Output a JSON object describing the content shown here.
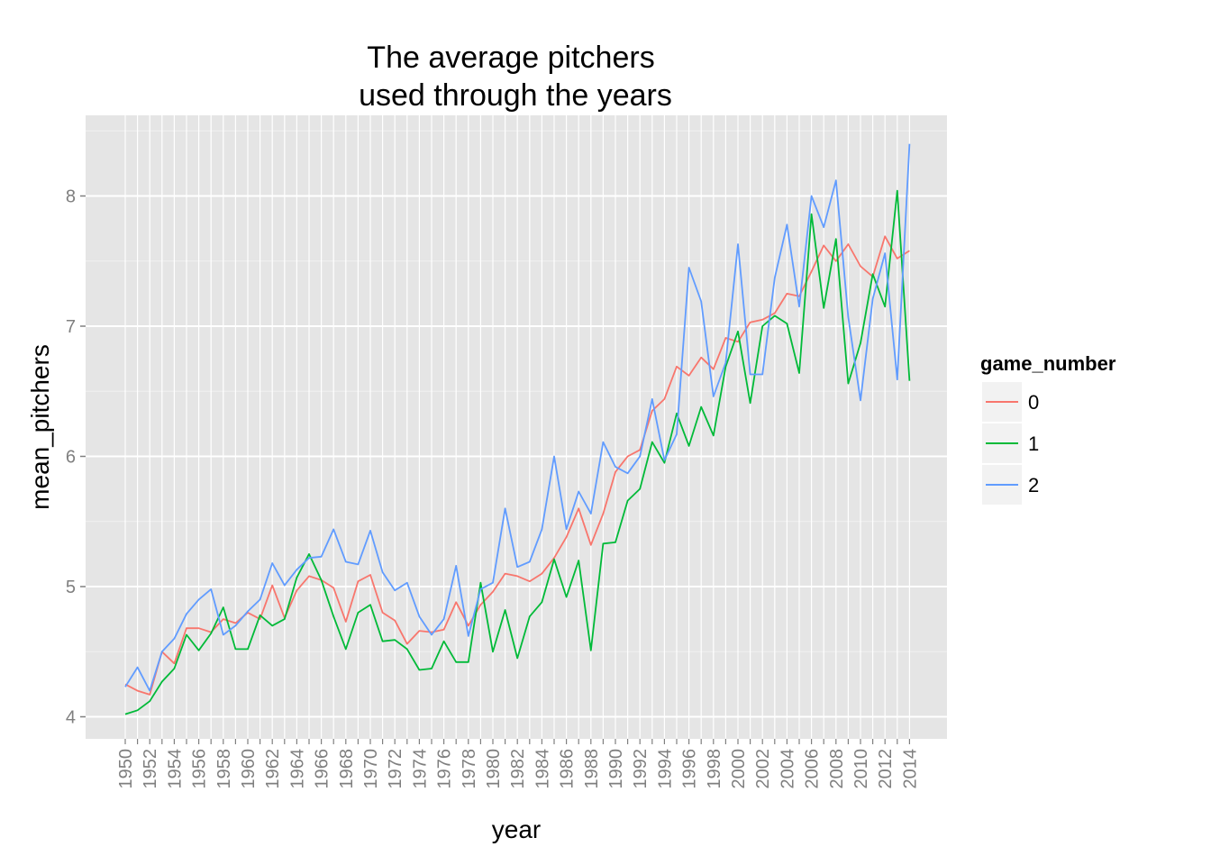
{
  "chart_data": {
    "type": "line",
    "title_lines": [
      "The average pitchers",
      "used through the years"
    ],
    "xlabel": "year",
    "ylabel": "mean_pitchers",
    "x": [
      1950,
      1951,
      1952,
      1953,
      1954,
      1955,
      1956,
      1957,
      1958,
      1959,
      1960,
      1961,
      1962,
      1963,
      1964,
      1965,
      1966,
      1967,
      1968,
      1969,
      1970,
      1971,
      1972,
      1973,
      1974,
      1975,
      1976,
      1977,
      1978,
      1979,
      1980,
      1981,
      1982,
      1983,
      1984,
      1985,
      1986,
      1987,
      1988,
      1989,
      1990,
      1991,
      1992,
      1993,
      1994,
      1995,
      1996,
      1997,
      1998,
      1999,
      2000,
      2001,
      2002,
      2003,
      2004,
      2005,
      2006,
      2007,
      2008,
      2009,
      2010,
      2011,
      2012,
      2013,
      2014
    ],
    "x_tick_labels": [
      "1950",
      "1952",
      "1954",
      "1956",
      "1958",
      "1960",
      "1962",
      "1964",
      "1966",
      "1968",
      "1970",
      "1972",
      "1974",
      "1976",
      "1978",
      "1980",
      "1982",
      "1984",
      "1986",
      "1988",
      "1990",
      "1992",
      "1994",
      "1996",
      "1998",
      "2000",
      "2002",
      "2004",
      "2006",
      "2008",
      "2010",
      "2012",
      "2014"
    ],
    "y_ticks": [
      "4",
      "5",
      "6",
      "7",
      "8"
    ],
    "ylim": [
      3.85,
      8.62
    ],
    "grid": true,
    "legend": {
      "title": "game_number",
      "position": "right"
    },
    "series": [
      {
        "name": "0",
        "color": "#F8766D",
        "values": [
          4.25,
          4.2,
          4.17,
          4.5,
          4.41,
          4.68,
          4.68,
          4.65,
          4.75,
          4.72,
          4.8,
          4.75,
          5.01,
          4.76,
          4.97,
          5.08,
          5.05,
          4.99,
          4.73,
          5.04,
          5.09,
          4.8,
          4.74,
          4.56,
          4.66,
          4.65,
          4.67,
          4.88,
          4.7,
          4.86,
          4.96,
          5.1,
          5.08,
          5.04,
          5.1,
          5.22,
          5.38,
          5.6,
          5.32,
          5.56,
          5.88,
          6.0,
          6.05,
          6.35,
          6.44,
          6.69,
          6.62,
          6.76,
          6.67,
          6.91,
          6.88,
          7.03,
          7.05,
          7.1,
          7.25,
          7.23,
          7.42,
          7.62,
          7.5,
          7.63,
          7.46,
          7.38,
          7.69,
          7.52,
          7.58
        ]
      },
      {
        "name": "1",
        "color": "#00BA38",
        "values": [
          4.02,
          4.05,
          4.12,
          4.27,
          4.37,
          4.63,
          4.51,
          4.64,
          4.84,
          4.52,
          4.52,
          4.78,
          4.7,
          4.75,
          5.07,
          5.25,
          5.05,
          4.77,
          4.52,
          4.8,
          4.86,
          4.58,
          4.59,
          4.52,
          4.36,
          4.37,
          4.58,
          4.42,
          4.42,
          5.03,
          4.5,
          4.82,
          4.45,
          4.77,
          4.88,
          5.21,
          4.92,
          5.2,
          4.51,
          5.33,
          5.34,
          5.66,
          5.75,
          6.11,
          5.95,
          6.33,
          6.08,
          6.38,
          6.16,
          6.69,
          6.96,
          6.41,
          7.0,
          7.08,
          7.02,
          6.64,
          7.86,
          7.14,
          7.67,
          6.56,
          6.87,
          7.4,
          7.15,
          8.04,
          6.58
        ]
      },
      {
        "name": "2",
        "color": "#619CFF",
        "values": [
          4.23,
          4.38,
          4.2,
          4.5,
          4.6,
          4.79,
          4.9,
          4.98,
          4.63,
          4.7,
          4.81,
          4.9,
          5.18,
          5.01,
          5.13,
          5.22,
          5.23,
          5.44,
          5.19,
          5.17,
          5.43,
          5.11,
          4.97,
          5.03,
          4.77,
          4.63,
          4.75,
          5.16,
          4.62,
          4.98,
          5.03,
          5.6,
          5.15,
          5.19,
          5.44,
          6.0,
          5.44,
          5.73,
          5.56,
          6.11,
          5.92,
          5.87,
          6.0,
          6.44,
          5.97,
          6.17,
          7.45,
          7.19,
          6.46,
          6.72,
          7.63,
          6.63,
          6.63,
          7.37,
          7.78,
          7.15,
          8.0,
          7.76,
          8.12,
          7.07,
          6.43,
          7.21,
          7.56,
          6.59,
          8.4
        ]
      }
    ]
  }
}
